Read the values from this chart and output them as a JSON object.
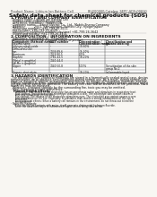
{
  "bg_color": "#f0ede8",
  "page_bg": "#f8f6f2",
  "header_left": "Product Name: Lithium Ion Battery Cell",
  "header_right_line1": "BU200000 Catalog: SEPC-SDS-00010",
  "header_right_line2": "Established / Revision: Dec.7.2016",
  "title": "Safety data sheet for chemical products (SDS)",
  "s1_title": "1 PRODUCT AND COMPANY IDENTIFICATION",
  "s1_lines": [
    "· Product name: Lithium Ion Battery Cell",
    "· Product code: Cylindrical-type cell",
    "  INR18650, INR18650, INR18650A",
    "· Company name:    Sanyo Electric Co., Ltd., Mobile Energy Company",
    "· Address:          2001, Kamishinden, Sumoto City, Hyogo, Japan",
    "· Telephone number:  +81-799-26-4111",
    "· Fax number: +81-799-26-4120",
    "· Emergency telephone number (daytime) +81-799-26-3642",
    "  (Night and holiday) +81-799-26-4101"
  ],
  "s2_title": "2 COMPOSITION / INFORMATION ON INGREDIENTS",
  "s2_sub1": "· Substance or preparation: Preparation",
  "s2_sub2": "· Information about the chemical nature of product:",
  "tbl_h0": "Component chemical name",
  "tbl_h0b": "Several name",
  "tbl_h1": "CAS number",
  "tbl_h2a": "Concentration /",
  "tbl_h2b": "Concentration range",
  "tbl_h3a": "Classification and",
  "tbl_h3b": "hazard labeling",
  "tbl_rows": [
    [
      "Lithium cobalt oxide",
      "-",
      "30-60%",
      ""
    ],
    [
      "(LiMnCoFeCrO4)",
      "",
      "",
      ""
    ],
    [
      "Iron",
      "7439-89-6",
      "15-20%",
      ""
    ],
    [
      "Aluminum",
      "7429-90-5",
      "2-5%",
      ""
    ],
    [
      "Graphite",
      "7782-42-5",
      "10-20%",
      ""
    ],
    [
      "(Metal in graphite)",
      "7440-44-0",
      "",
      ""
    ],
    [
      "(Al-Mo in graphite)",
      "",
      "",
      ""
    ],
    [
      "Copper",
      "7440-50-8",
      "5-15%",
      "Sensitization of the skin"
    ],
    [
      "",
      "",
      "",
      "group No.2"
    ],
    [
      "Organic electrolyte",
      "-",
      "10-20%",
      "Inflammable liquid"
    ]
  ],
  "s3_title": "3 HAZARDS IDENTIFICATION",
  "s3_lines": [
    "  For the battery cell, chemical materials are stored in a hermetically sealed metal case, designed to withstand",
    "temperatures up to absolute-zero conditions during normal use. As a result, during normal use, there is no",
    "physical danger of ignition or aspiration and there is no danger of hazardous materials leakage.",
    "  When exposed to a fire, added mechanical shocks, decomposed, amber electric without any measure,",
    "the gas inside cannot be operated. The battery cell case will be breached at fire potential, hazardous",
    "materials may be released.",
    "  Moreover, if heated strongly by the surrounding fire, toxic gas may be emitted."
  ],
  "s3_b1": "· Most important hazard and effects:",
  "s3_b1a": "Human health effects:",
  "s3_b1a_lines": [
    "  Inhalation: The release of the electrolyte has an anesthesia action and stimulates in respiratory tract.",
    "  Skin contact: The release of the electrolyte stimulates a skin. The electrolyte skin contact causes a",
    "  sore and stimulation on the skin.",
    "  Eye contact: The release of the electrolyte stimulates eyes. The electrolyte eye contact causes a sore",
    "  and stimulation on the eye. Especially, a substance that causes a strong inflammation of the eye is",
    "  contained."
  ],
  "s3_b1b": "  Environmental effects: Since a battery cell remains in the environment, do not throw out it into the",
  "s3_b1b2": "  environment.",
  "s3_b2": "· Specific hazards:",
  "s3_b2_lines": [
    "  If the electrolyte contacts with water, it will generate detrimental hydrogen fluoride.",
    "  Since the used electrolyte is inflammable liquid, do not bring close to fire."
  ]
}
